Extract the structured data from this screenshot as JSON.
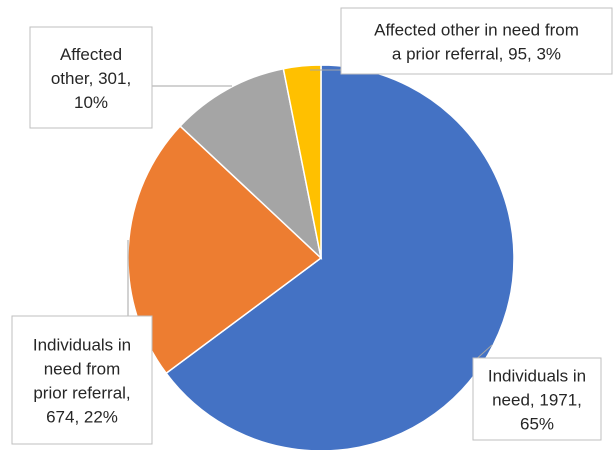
{
  "chart_data": {
    "type": "pie",
    "title": "",
    "slices": [
      {
        "name": "Individuals in need",
        "value": 1971,
        "percent": 65,
        "color": "#4472c4",
        "label_lines": [
          "Individuals in",
          "need, 1971,",
          "65%"
        ]
      },
      {
        "name": "Individuals in need from prior referral",
        "value": 674,
        "percent": 22,
        "color": "#ed7d31",
        "label_lines": [
          "Individuals in",
          "need from",
          "prior referral,",
          "674, 22%"
        ]
      },
      {
        "name": "Affected other",
        "value": 301,
        "percent": 10,
        "color": "#a5a5a5",
        "label_lines": [
          "Affected",
          "other, 301,",
          "10%"
        ]
      },
      {
        "name": "Affected other in need from a prior referral",
        "value": 95,
        "percent": 3,
        "color": "#ffc000",
        "label_lines": [
          "Affected other in need from",
          "a prior referral, 95, 3%"
        ]
      }
    ],
    "start_angle": "12 o'clock",
    "direction": "clockwise",
    "legend": "none"
  }
}
